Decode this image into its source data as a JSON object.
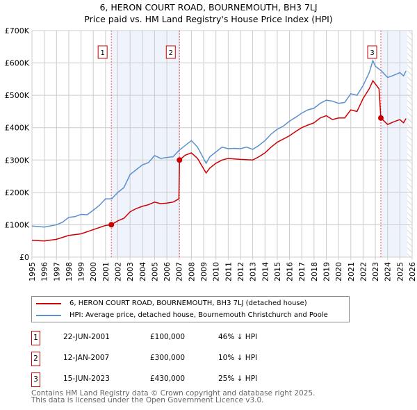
{
  "chart_data": {
    "type": "line",
    "title": "6, HERON COURT ROAD, BOURNEMOUTH, BH3 7LJ",
    "subtitle": "Price paid vs. HM Land Registry's House Price Index (HPI)",
    "xlim": [
      1995,
      2026
    ],
    "ylim": [
      0,
      700000
    ],
    "x_ticks": [
      "1995",
      "1996",
      "1997",
      "1998",
      "1999",
      "2000",
      "2001",
      "2002",
      "2003",
      "2004",
      "2005",
      "2006",
      "2007",
      "2008",
      "2009",
      "2010",
      "2011",
      "2012",
      "2013",
      "2014",
      "2015",
      "2016",
      "2017",
      "2018",
      "2019",
      "2020",
      "2021",
      "2022",
      "2023",
      "2024",
      "2025",
      "2026"
    ],
    "y_ticks": [
      {
        "v": 0,
        "label": "£0"
      },
      {
        "v": 100000,
        "label": "£100K"
      },
      {
        "v": 200000,
        "label": "£200K"
      },
      {
        "v": 300000,
        "label": "£300K"
      },
      {
        "v": 400000,
        "label": "£400K"
      },
      {
        "v": 500000,
        "label": "£500K"
      },
      {
        "v": 600000,
        "label": "£600K"
      },
      {
        "v": 700000,
        "label": "£700K"
      }
    ],
    "grid": true,
    "series": [
      {
        "name": "6, HERON COURT ROAD, BOURNEMOUTH, BH3 7LJ (detached house)",
        "color": "#cc0000",
        "x": [
          1995,
          1996,
          1997,
          1998,
          1999,
          2000,
          2001,
          2001.47,
          2002,
          2002.5,
          2003,
          2003.5,
          2004,
          2004.5,
          2005,
          2005.5,
          2006,
          2006.5,
          2006.98,
          2007.03,
          2007.5,
          2008,
          2008.5,
          2009.2,
          2009.5,
          2010,
          2010.5,
          2011,
          2012,
          2013,
          2013.5,
          2014,
          2014.5,
          2015,
          2016,
          2016.5,
          2017,
          2017.5,
          2018,
          2018.5,
          2019,
          2019.5,
          2020,
          2020.5,
          2021,
          2021.5,
          2022,
          2022.5,
          2022.8,
          2023.3,
          2023.45,
          2024,
          2024.5,
          2025,
          2025.3,
          2025.5
        ],
        "y": [
          52000,
          50000,
          55000,
          67000,
          72000,
          85000,
          98000,
          100000,
          112000,
          120000,
          140000,
          150000,
          157000,
          162000,
          170000,
          165000,
          167000,
          170000,
          180000,
          300000,
          315000,
          322000,
          305000,
          260000,
          275000,
          290000,
          300000,
          305000,
          302000,
          300000,
          310000,
          322000,
          340000,
          355000,
          375000,
          388000,
          400000,
          408000,
          415000,
          430000,
          437000,
          425000,
          430000,
          430000,
          455000,
          450000,
          490000,
          520000,
          545000,
          520000,
          430000,
          410000,
          418000,
          425000,
          415000,
          428000
        ]
      },
      {
        "name": "HPI: Average price, detached house, Bournemouth Christchurch and Poole",
        "color": "#5b8fd0",
        "x": [
          1995,
          1996,
          1997,
          1997.5,
          1998,
          1998.5,
          1999,
          1999.5,
          2000,
          2000.5,
          2001,
          2001.5,
          2002,
          2002.5,
          2003,
          2003.5,
          2004,
          2004.5,
          2005,
          2005.5,
          2006,
          2006.5,
          2007,
          2007.5,
          2008,
          2008.5,
          2009.2,
          2009.5,
          2010,
          2010.5,
          2011,
          2011.5,
          2012,
          2012.5,
          2013,
          2013.5,
          2014,
          2014.5,
          2015,
          2015.5,
          2016,
          2016.5,
          2017,
          2017.5,
          2018,
          2018.5,
          2019,
          2019.5,
          2020,
          2020.5,
          2021,
          2021.5,
          2022,
          2022.5,
          2022.8,
          2023,
          2023.5,
          2024,
          2024.5,
          2025,
          2025.3,
          2025.5
        ],
        "y": [
          96000,
          93000,
          100000,
          108000,
          123000,
          125000,
          132000,
          131000,
          145000,
          160000,
          180000,
          180000,
          200000,
          215000,
          255000,
          270000,
          285000,
          292000,
          314000,
          305000,
          308000,
          310000,
          330000,
          345000,
          360000,
          340000,
          290000,
          310000,
          325000,
          340000,
          335000,
          336000,
          335000,
          340000,
          333000,
          345000,
          360000,
          380000,
          395000,
          405000,
          420000,
          432000,
          445000,
          455000,
          460000,
          475000,
          485000,
          482000,
          475000,
          478000,
          505000,
          500000,
          530000,
          570000,
          607000,
          590000,
          575000,
          555000,
          562000,
          570000,
          560000,
          575000
        ]
      }
    ],
    "sales": [
      {
        "label": "1",
        "x": 2001.47,
        "y": 100000,
        "date": "22-JUN-2001",
        "price": "£100,000",
        "hpi": "46% ↓ HPI"
      },
      {
        "label": "2",
        "x": 2007.03,
        "y": 300000,
        "date": "12-JAN-2007",
        "price": "£300,000",
        "hpi": "10% ↓ HPI"
      },
      {
        "label": "3",
        "x": 2023.45,
        "y": 430000,
        "date": "15-JUN-2023",
        "price": "£430,000",
        "hpi": "25% ↓ HPI"
      }
    ],
    "shaded_ranges": [
      [
        2001.47,
        2007.03
      ],
      [
        2023.45,
        2025.6
      ]
    ],
    "hatched_from": 2025.6
  },
  "footer": {
    "line1": "Contains HM Land Registry data © Crown copyright and database right 2025.",
    "line2": "This data is licensed under the Open Government Licence v3.0."
  }
}
